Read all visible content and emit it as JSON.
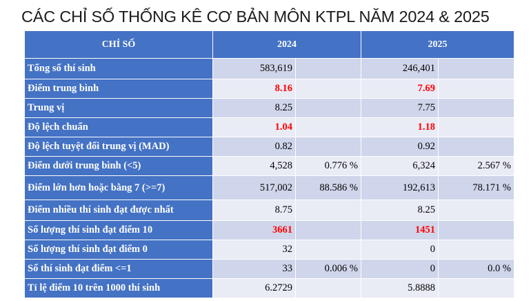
{
  "title": "CÁC CHỈ SỐ THỐNG KÊ CƠ BẢN MÔN KTPL NĂM 2024 & 2025",
  "headers": [
    "CHỈ SỐ",
    "2024",
    "2025"
  ],
  "rows": [
    {
      "label": "Tổng số thí sinh",
      "v2024": "583,619",
      "p2024": "",
      "v2025": "246,401",
      "p2025": ""
    },
    {
      "label": "Điểm trung bình",
      "v2024": "8.16",
      "p2024": "",
      "v2025": "7.69",
      "p2025": ""
    },
    {
      "label": "Trung vị",
      "v2024": "8.25",
      "p2024": "",
      "v2025": "7.75",
      "p2025": ""
    },
    {
      "label": "Độ lệch chuẩn",
      "v2024": "1.04",
      "p2024": "",
      "v2025": "1.18",
      "p2025": ""
    },
    {
      "label": "Độ lệch tuyệt đối trung vị (MAD)",
      "v2024": "0.82",
      "p2024": "",
      "v2025": "0.92",
      "p2025": ""
    },
    {
      "label": "Điểm dưới trung bình (<5)",
      "v2024": "4,528",
      "p2024": "0.776 %",
      "v2025": "6,324",
      "p2025": "2.567 %"
    },
    {
      "label": "Điểm lớn hơn hoặc bằng 7 (>=7)",
      "v2024": "517,002",
      "p2024": "88.586 %",
      "v2025": "192,613",
      "p2025": "78.171 %"
    },
    {
      "label": "Điểm nhiều thí sinh đạt được nhất",
      "v2024": "8.75",
      "p2024": "",
      "v2025": "8.25",
      "p2025": ""
    },
    {
      "label": "Số lượng thí sinh đạt điểm 10",
      "v2024": "3661",
      "p2024": "",
      "v2025": "1451",
      "p2025": ""
    },
    {
      "label": "Số lượng thí sinh đạt điểm 0",
      "v2024": "32",
      "p2024": "",
      "v2025": "0",
      "p2025": ""
    },
    {
      "label": "Số thí sinh đạt điểm <=1",
      "v2024": "33",
      "p2024": "0.006 %",
      "v2025": "0",
      "p2025": "0.0 %"
    },
    {
      "label": "Tỉ lệ điểm 10 trên 1000 thí sinh",
      "v2024": "6.2729",
      "p2024": "",
      "v2025": "5.8888",
      "p2025": ""
    }
  ],
  "colors": {
    "header_blue": "#4472c4",
    "row_dark": "#cfd5ea",
    "row_light": "#e9ebf5",
    "highlight_red": "#ff0000"
  }
}
